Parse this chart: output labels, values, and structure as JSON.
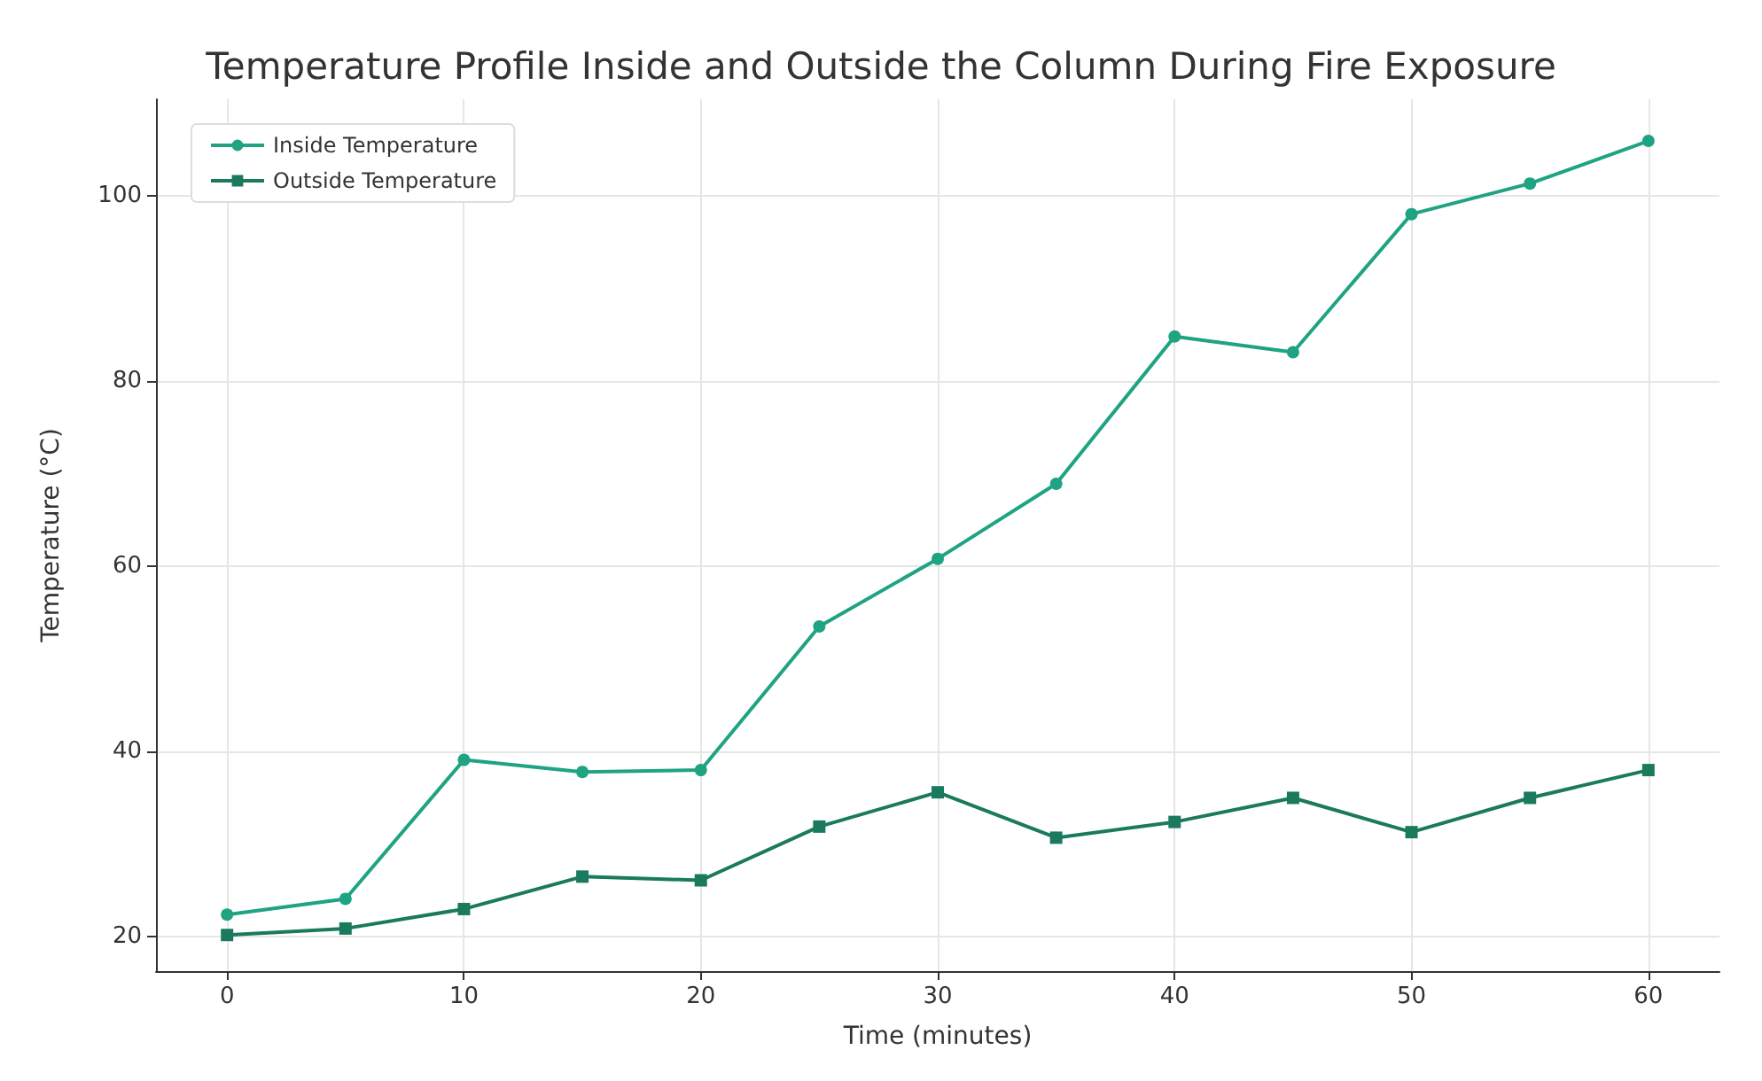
{
  "chart_data": {
    "type": "line",
    "title": "Temperature Profile Inside and Outside the Column During Fire Exposure",
    "xlabel": "Time (minutes)",
    "ylabel": "Temperature (°C)",
    "x": [
      0,
      5,
      10,
      15,
      20,
      25,
      30,
      35,
      40,
      45,
      50,
      55,
      60
    ],
    "series": [
      {
        "name": "Inside Temperature",
        "color": "#1fa383",
        "marker": "circle",
        "values": [
          22.4,
          24.1,
          39.1,
          37.8,
          38.0,
          53.5,
          60.8,
          68.9,
          84.8,
          83.1,
          98.0,
          101.3,
          105.9
        ]
      },
      {
        "name": "Outside Temperature",
        "color": "#1b7a5e",
        "marker": "square",
        "values": [
          20.2,
          20.9,
          23.0,
          26.5,
          26.1,
          31.9,
          35.6,
          30.7,
          32.4,
          35.0,
          31.3,
          35.0,
          38.0
        ]
      }
    ],
    "xlim": [
      -3,
      63
    ],
    "xticks": [
      0,
      10,
      20,
      30,
      40,
      50,
      60
    ],
    "ylim": [
      16.3,
      110.4
    ],
    "yticks": [
      20,
      40,
      60,
      80,
      100
    ],
    "grid": true,
    "legend": "top left",
    "line_style": "solid"
  }
}
